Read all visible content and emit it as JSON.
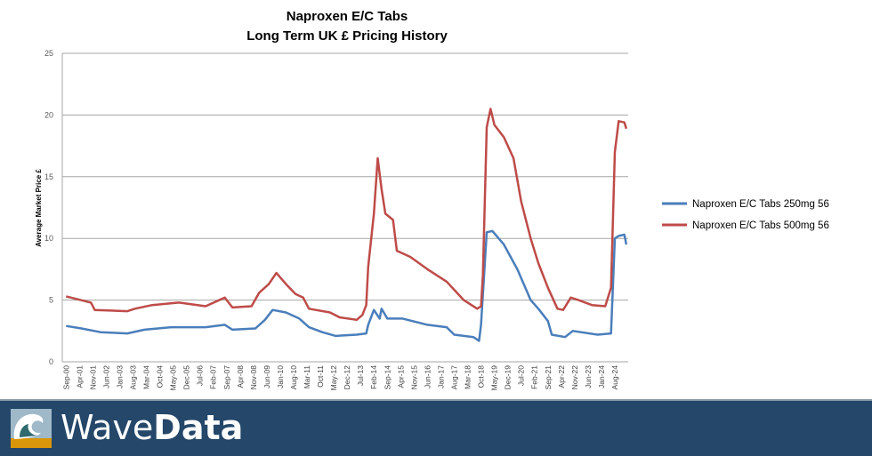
{
  "chart_data": {
    "type": "line",
    "title": "Naproxen E/C Tabs",
    "subtitle": "Long Term UK £ Pricing History",
    "xlabel": "",
    "ylabel": "Average Market Price £",
    "ylim": [
      0,
      25
    ],
    "yticks": [
      0,
      5,
      10,
      15,
      20,
      25
    ],
    "xlim": [
      "2000-07",
      "2025-03"
    ],
    "xtick_labels": [
      "Sep-00",
      "Apr-01",
      "Nov-01",
      "Jun-02",
      "Jan-03",
      "Aug-03",
      "Mar-04",
      "Oct-04",
      "May-05",
      "Dec-05",
      "Jul-06",
      "Feb-07",
      "Sep-07",
      "Apr-08",
      "Nov-08",
      "Jun-09",
      "Jan-10",
      "Aug-10",
      "Mar-11",
      "Oct-11",
      "May-12",
      "Dec-12",
      "Jul-13",
      "Feb-14",
      "Sep-14",
      "Apr-15",
      "Nov-15",
      "Jun-16",
      "Jan-17",
      "Aug-17",
      "Mar-18",
      "Oct-18",
      "May-19",
      "Dec-19",
      "Jul-20",
      "Feb-21",
      "Sep-21",
      "Apr-22",
      "Nov-22",
      "Jun-23",
      "Jan-24",
      "Aug-24"
    ],
    "grid": "horizontal",
    "legend": "right",
    "series": [
      {
        "name": "Naproxen E/C Tabs 250mg 56",
        "color": "#4a7ebb",
        "points": [
          [
            "2000-09",
            2.9
          ],
          [
            "2001-05",
            2.7
          ],
          [
            "2002-03",
            2.4
          ],
          [
            "2003-05",
            2.3
          ],
          [
            "2004-02",
            2.6
          ],
          [
            "2005-04",
            2.8
          ],
          [
            "2006-10",
            2.8
          ],
          [
            "2007-08",
            3.0
          ],
          [
            "2007-12",
            2.6
          ],
          [
            "2008-12",
            2.7
          ],
          [
            "2009-05",
            3.4
          ],
          [
            "2009-09",
            4.2
          ],
          [
            "2010-04",
            4.0
          ],
          [
            "2010-11",
            3.5
          ],
          [
            "2011-04",
            2.8
          ],
          [
            "2011-11",
            2.4
          ],
          [
            "2012-06",
            2.1
          ],
          [
            "2013-05",
            2.2
          ],
          [
            "2013-10",
            2.3
          ],
          [
            "2013-11",
            3.0
          ],
          [
            "2014-02",
            4.2
          ],
          [
            "2014-05",
            3.5
          ],
          [
            "2014-06",
            4.3
          ],
          [
            "2014-09",
            3.5
          ],
          [
            "2015-05",
            3.5
          ],
          [
            "2016-06",
            3.0
          ],
          [
            "2017-04",
            2.8
          ],
          [
            "2017-08",
            2.2
          ],
          [
            "2018-06",
            2.0
          ],
          [
            "2018-09",
            1.7
          ],
          [
            "2018-10",
            3.0
          ],
          [
            "2019-01",
            10.5
          ],
          [
            "2019-04",
            10.6
          ],
          [
            "2019-10",
            9.5
          ],
          [
            "2020-05",
            7.5
          ],
          [
            "2020-12",
            5.0
          ],
          [
            "2021-04",
            4.3
          ],
          [
            "2021-09",
            3.3
          ],
          [
            "2021-11",
            2.2
          ],
          [
            "2022-06",
            2.0
          ],
          [
            "2022-10",
            2.5
          ],
          [
            "2023-11",
            2.2
          ],
          [
            "2024-06",
            2.3
          ],
          [
            "2024-08",
            10.0
          ],
          [
            "2024-10",
            10.2
          ],
          [
            "2025-01",
            10.3
          ],
          [
            "2025-02",
            9.5
          ]
        ]
      },
      {
        "name": "Naproxen E/C Tabs 500mg 56",
        "color": "#be4b48",
        "points": [
          [
            "2000-09",
            5.3
          ],
          [
            "2001-10",
            4.8
          ],
          [
            "2001-12",
            4.2
          ],
          [
            "2003-05",
            4.1
          ],
          [
            "2003-09",
            4.3
          ],
          [
            "2004-06",
            4.6
          ],
          [
            "2005-08",
            4.8
          ],
          [
            "2006-10",
            4.5
          ],
          [
            "2007-08",
            5.2
          ],
          [
            "2007-12",
            4.4
          ],
          [
            "2008-10",
            4.5
          ],
          [
            "2009-02",
            5.6
          ],
          [
            "2009-07",
            6.3
          ],
          [
            "2009-11",
            7.2
          ],
          [
            "2010-04",
            6.3
          ],
          [
            "2010-09",
            5.5
          ],
          [
            "2011-01",
            5.2
          ],
          [
            "2011-04",
            4.3
          ],
          [
            "2012-03",
            4.0
          ],
          [
            "2012-08",
            3.6
          ],
          [
            "2013-05",
            3.4
          ],
          [
            "2013-08",
            3.8
          ],
          [
            "2013-10",
            4.6
          ],
          [
            "2013-11",
            7.7
          ],
          [
            "2014-02",
            12.0
          ],
          [
            "2014-04",
            16.5
          ],
          [
            "2014-06",
            14.0
          ],
          [
            "2014-08",
            12.0
          ],
          [
            "2014-12",
            11.5
          ],
          [
            "2015-02",
            9.0
          ],
          [
            "2015-09",
            8.5
          ],
          [
            "2016-06",
            7.5
          ],
          [
            "2017-04",
            6.5
          ],
          [
            "2018-01",
            5.0
          ],
          [
            "2018-08",
            4.3
          ],
          [
            "2018-10",
            4.5
          ],
          [
            "2018-11",
            7.0
          ],
          [
            "2019-01",
            19.0
          ],
          [
            "2019-03",
            20.5
          ],
          [
            "2019-05",
            19.2
          ],
          [
            "2019-10",
            18.2
          ],
          [
            "2020-03",
            16.5
          ],
          [
            "2020-07",
            13.0
          ],
          [
            "2020-12",
            10.0
          ],
          [
            "2021-04",
            8.0
          ],
          [
            "2021-09",
            6.0
          ],
          [
            "2022-02",
            4.3
          ],
          [
            "2022-05",
            4.2
          ],
          [
            "2022-09",
            5.2
          ],
          [
            "2023-01",
            5.0
          ],
          [
            "2023-08",
            4.6
          ],
          [
            "2024-03",
            4.5
          ],
          [
            "2024-06",
            6.0
          ],
          [
            "2024-08",
            17.0
          ],
          [
            "2024-10",
            19.5
          ],
          [
            "2025-01",
            19.4
          ],
          [
            "2025-02",
            18.9
          ]
        ]
      }
    ]
  },
  "footer": {
    "brand_light": "Wave",
    "brand_bold": "Data",
    "bg_color": "#24476a"
  }
}
